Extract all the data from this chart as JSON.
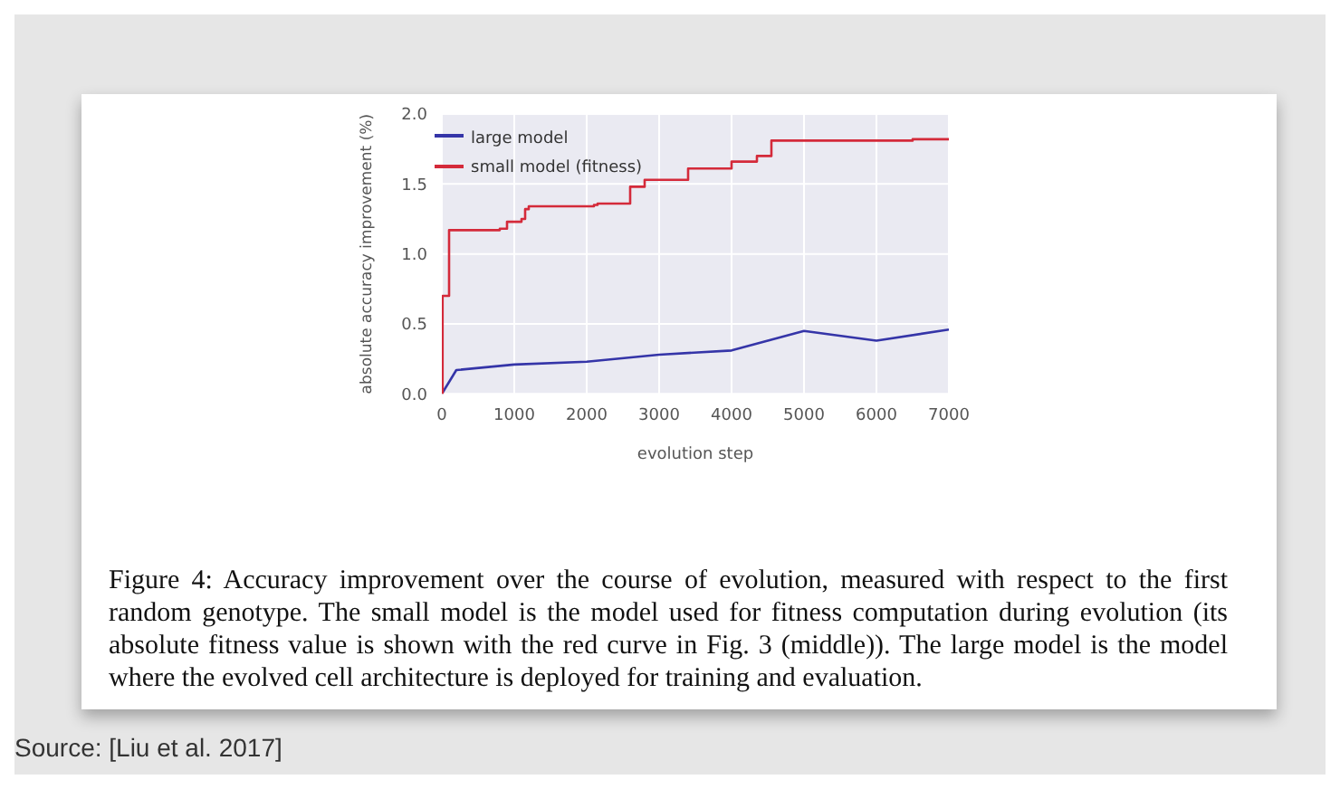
{
  "chart_data": {
    "type": "line",
    "xlabel": "evolution step",
    "ylabel": "absolute accuracy improvement (%)",
    "xlim": [
      0,
      7000
    ],
    "xticks": [
      0,
      1000,
      2000,
      3000,
      4000,
      5000,
      6000,
      7000
    ],
    "ylim": [
      0,
      2
    ],
    "yticks": [
      {
        "value": 0,
        "label": "0.0"
      },
      0.5,
      {
        "value": 1,
        "label": "1.0"
      },
      1.5,
      {
        "value": 2,
        "label": "2.0"
      }
    ],
    "grid": true,
    "legend": "top left",
    "marker": "none",
    "line_style": "solid",
    "series": [
      {
        "name": "large model",
        "color": "#3535a8",
        "type": "line",
        "x": [
          0,
          200,
          1000,
          2000,
          3000,
          4000,
          5000,
          6000,
          7000
        ],
        "values": [
          0,
          0.17,
          0.21,
          0.23,
          0.28,
          0.31,
          0.45,
          0.38,
          0.46
        ]
      },
      {
        "name": "small model (fitness)",
        "color": "#d42a3a",
        "type": "step",
        "x": [
          0,
          10,
          100,
          800,
          900,
          1100,
          1150,
          1200,
          2100,
          2150,
          2600,
          2800,
          3400,
          4000,
          4350,
          4550,
          6500,
          7000
        ],
        "values": [
          0,
          0.7,
          1.17,
          1.18,
          1.23,
          1.25,
          1.32,
          1.34,
          1.35,
          1.36,
          1.48,
          1.53,
          1.61,
          1.66,
          1.7,
          1.81,
          1.82,
          1.82
        ]
      }
    ],
    "annotations": [
      "Figure 4: Accuracy improvement over the course of evolution, measured with respect to the first random genotype. The small model is the model used for fitness computation during evolution (its absolute fitness value is shown with the red curve in Fig. 3 (middle)). The large model is the model where the evolved cell architecture is deployed for training and evaluation.",
      "Source: [Liu et al. 2017]"
    ]
  }
}
